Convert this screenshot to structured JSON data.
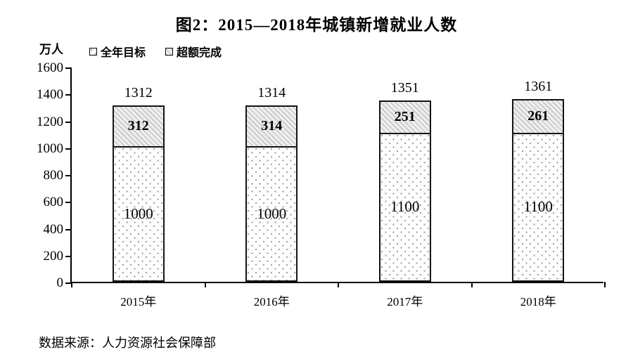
{
  "title": "图2：2015—2018年城镇新增就业人数",
  "unit_label": "万人",
  "legend": {
    "items": [
      {
        "label": "全年目标",
        "pattern": "dots"
      },
      {
        "label": "超额完成",
        "pattern": "hatch"
      }
    ]
  },
  "footer": {
    "source_text": "数据来源：人力资源社会保障部"
  },
  "colors": {
    "axis": "#000000",
    "bar_border": "#141414",
    "hatch_line": "#c6c6c6",
    "dot": "#9b9b9b",
    "text": "#000000"
  },
  "chart_data": {
    "type": "bar",
    "stacked": true,
    "title": "图2：2015—2018年城镇新增就业人数",
    "ylabel": "万人",
    "categories": [
      "2015年",
      "2016年",
      "2017年",
      "2018年"
    ],
    "series": [
      {
        "name": "全年目标",
        "pattern": "dots",
        "values": [
          1000,
          1000,
          1100,
          1100
        ]
      },
      {
        "name": "超额完成",
        "pattern": "hatch",
        "values": [
          312,
          314,
          251,
          261
        ]
      }
    ],
    "totals": [
      1312,
      1314,
      1351,
      1361
    ],
    "ylim": [
      0,
      1600
    ],
    "yticks": [
      0,
      200,
      400,
      600,
      800,
      1000,
      1200,
      1400,
      1600
    ],
    "grid": false,
    "legend_position": "top-left"
  }
}
